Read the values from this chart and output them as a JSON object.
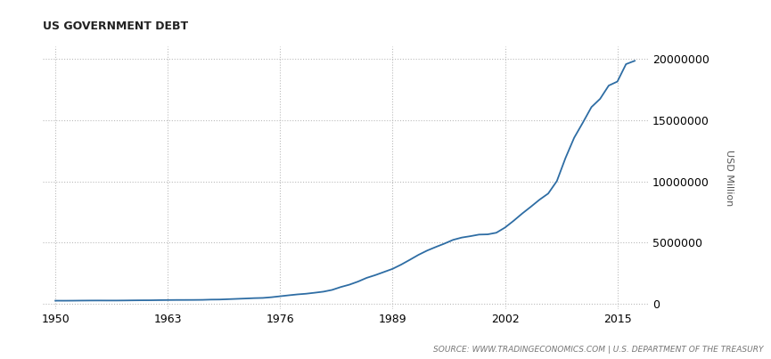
{
  "title": "US GOVERNMENT DEBT",
  "ylabel": "USD Million",
  "source_text": "SOURCE: WWW.TRADINGECONOMICS.COM | U.S. DEPARTMENT OF THE TREASURY",
  "background_color": "#ffffff",
  "line_color": "#2e6da4",
  "grid_color": "#bbbbbb",
  "xticks": [
    1950,
    1963,
    1976,
    1989,
    2002,
    2015
  ],
  "yticks": [
    0,
    5000000,
    10000000,
    15000000,
    20000000
  ],
  "ylim": [
    -400000,
    21000000
  ],
  "xlim": [
    1948.5,
    2018.5
  ],
  "data_years": [
    1950,
    1951,
    1952,
    1953,
    1954,
    1955,
    1956,
    1957,
    1958,
    1959,
    1960,
    1961,
    1962,
    1963,
    1964,
    1965,
    1966,
    1967,
    1968,
    1969,
    1970,
    1971,
    1972,
    1973,
    1974,
    1975,
    1976,
    1977,
    1978,
    1979,
    1980,
    1981,
    1982,
    1983,
    1984,
    1985,
    1986,
    1987,
    1988,
    1989,
    1990,
    1991,
    1992,
    1993,
    1994,
    1995,
    1996,
    1997,
    1998,
    1999,
    2000,
    2001,
    2002,
    2003,
    2004,
    2005,
    2006,
    2007,
    2008,
    2009,
    2010,
    2011,
    2012,
    2013,
    2014,
    2015,
    2016,
    2017
  ],
  "data_values": [
    257357,
    255222,
    259105,
    266071,
    270812,
    272813,
    270762,
    270527,
    276343,
    284706,
    290525,
    292648,
    302928,
    310324,
    316059,
    317273,
    319907,
    326221,
    347578,
    353720,
    380921,
    408176,
    435936,
    466291,
    483893,
    541925,
    620433,
    698840,
    771544,
    826519,
    907701,
    994845,
    1137300,
    1371660,
    1564586,
    1817521,
    2120629,
    2345578,
    2601307,
    2857430,
    3206290,
    3598178,
    4002136,
    4351200,
    4643711,
    4920586,
    5224811,
    5413146,
    5526193,
    5656270,
    5674178,
    5807463,
    6228236,
    6783231,
    7379052,
    7932710,
    8506973,
    9007653,
    10024725,
    11909829,
    13561623,
    14790340,
    16066241,
    16738184,
    17824071,
    18150617,
    19573444,
    19845648
  ],
  "title_fontsize": 9,
  "tick_fontsize": 9,
  "ylabel_fontsize": 8,
  "source_fontsize": 6.5,
  "linewidth": 1.3
}
